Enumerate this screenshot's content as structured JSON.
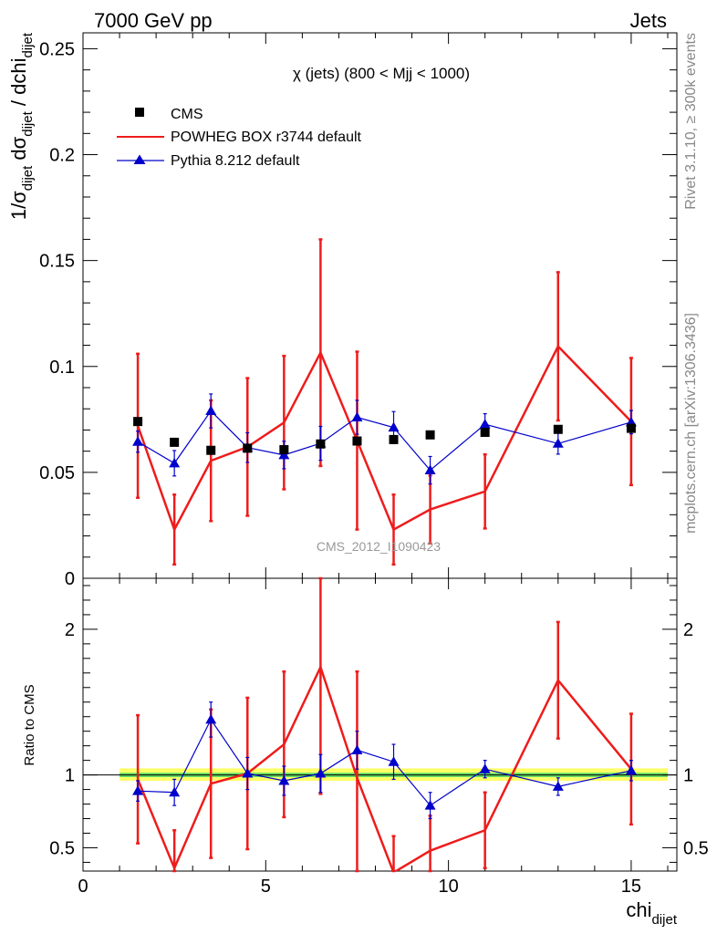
{
  "header": {
    "left": "7000 GeV pp",
    "right": "Jets"
  },
  "side_text": {
    "rivet": "Rivet 3.1.10, ≥ 300k events",
    "mcplots": "mcplots.cern.ch [arXiv:1306.3436]"
  },
  "watermark": "CMS_2012_I1090423",
  "colors": {
    "cms": "#000000",
    "powheg": "#ee1c1c",
    "pythia": "#0000cc",
    "band_outer": "#ffff66",
    "band_inner": "#66dd66"
  },
  "chart_data": [
    {
      "type": "line",
      "panel": "main",
      "title": "χ (jets) (800 < Mjj < 1000)",
      "ylabel": "1/σdijet dσdijet / dchidijet",
      "xlim": [
        0,
        16.25
      ],
      "ylim": [
        0,
        0.2575
      ],
      "yticks": [
        0,
        0.05,
        0.1,
        0.15,
        0.2,
        0.25
      ],
      "ytick_labels": [
        "0",
        "0.05",
        "0.1",
        "0.15",
        "0.2",
        "0.25"
      ],
      "series": [
        {
          "name": "CMS",
          "style": "markers",
          "x": [
            1.5,
            2.5,
            3.5,
            4.5,
            5.5,
            6.5,
            7.5,
            8.5,
            9.5,
            11,
            13,
            15
          ],
          "values": [
            0.074,
            0.0642,
            0.0604,
            0.0614,
            0.0607,
            0.0634,
            0.0648,
            0.0655,
            0.0677,
            0.0689,
            0.0703,
            0.0708
          ]
        },
        {
          "name": "POWHEG BOX r3744 default",
          "style": "line",
          "x": [
            1.5,
            2.5,
            3.5,
            4.5,
            5.5,
            6.5,
            7.5,
            8.5,
            9.5,
            11,
            13,
            15
          ],
          "values": [
            0.072,
            0.023,
            0.0555,
            0.062,
            0.0735,
            0.1065,
            0.065,
            0.023,
            0.0325,
            0.041,
            0.1095,
            0.074
          ],
          "errors": [
            0.034,
            0.0165,
            0.0285,
            0.0325,
            0.0315,
            0.0535,
            0.042,
            0.0165,
            0.016,
            0.0175,
            0.035,
            0.03
          ]
        },
        {
          "name": "Pythia 8.212 default",
          "style": "line-markers",
          "x": [
            1.5,
            2.5,
            3.5,
            4.5,
            5.5,
            6.5,
            7.5,
            8.5,
            9.5,
            11,
            13,
            15
          ],
          "values": [
            0.0645,
            0.0543,
            0.079,
            0.0617,
            0.0582,
            0.0637,
            0.076,
            0.0712,
            0.051,
            0.0727,
            0.0636,
            0.0737
          ],
          "errors": [
            0.005,
            0.006,
            0.008,
            0.007,
            0.0065,
            0.008,
            0.008,
            0.0075,
            0.0065,
            0.005,
            0.005,
            0.0055
          ]
        }
      ]
    },
    {
      "type": "line",
      "panel": "ratio",
      "ylabel": "Ratio to CMS",
      "xlabel": "chidijet",
      "xlim": [
        0,
        16.25
      ],
      "ylim": [
        0.34,
        2.35
      ],
      "xticks": [
        0,
        5,
        10,
        15
      ],
      "xtick_labels": [
        "0",
        "5",
        "10",
        "15"
      ],
      "yticks": [
        0.5,
        1,
        2
      ],
      "ytick_labels": [
        "0.5",
        "1",
        "2"
      ],
      "reference_line": 1,
      "band": {
        "x_range": [
          1,
          16
        ],
        "inner": [
          0.985,
          1.015
        ],
        "outer": [
          0.96,
          1.045
        ]
      },
      "series": [
        {
          "name": "POWHEG BOX r3744 default",
          "x": [
            1.5,
            2.5,
            3.5,
            4.5,
            5.5,
            6.5,
            7.5,
            8.5,
            9.5,
            11,
            13,
            15
          ],
          "values": [
            0.97,
            0.36,
            0.94,
            1.01,
            1.21,
            1.74,
            0.98,
            0.33,
            0.48,
            0.62,
            1.65,
            1.04
          ],
          "errors": [
            0.44,
            0.26,
            0.51,
            0.52,
            0.5,
            0.87,
            0.73,
            0.25,
            0.24,
            0.26,
            0.4,
            0.38
          ]
        },
        {
          "name": "Pythia 8.212 default",
          "x": [
            1.5,
            2.5,
            3.5,
            4.5,
            5.5,
            6.5,
            7.5,
            8.5,
            9.5,
            11,
            13,
            15
          ],
          "values": [
            0.89,
            0.88,
            1.38,
            1.01,
            0.96,
            1.01,
            1.17,
            1.09,
            0.79,
            1.04,
            0.92,
            1.03
          ],
          "errors": [
            0.07,
            0.09,
            0.12,
            0.11,
            0.1,
            0.13,
            0.13,
            0.12,
            0.09,
            0.06,
            0.06,
            0.07
          ]
        }
      ]
    }
  ]
}
